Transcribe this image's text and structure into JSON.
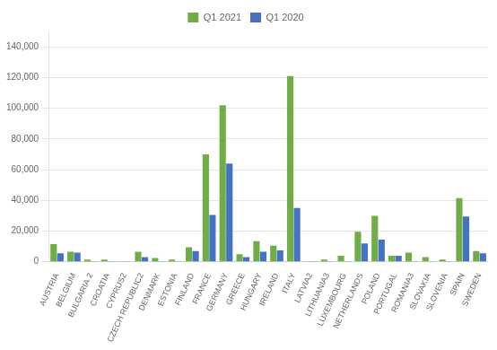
{
  "chart_data": {
    "type": "bar",
    "categories": [
      "AUSTRIA",
      "BELGIUM",
      "BULGARIA 2",
      "CROATIA",
      "CYPRUS2",
      "CZECH REPUBLIC2",
      "DENMARK",
      "ESTONIA",
      "FINLAND",
      "FRANCE",
      "GERMANY",
      "GREECE",
      "HUNGARY",
      "IRELAND",
      "ITALY",
      "LATVIA2",
      "LITHUANIA3",
      "LUXEMBOURG",
      "NETHERLANDS",
      "POLAND",
      "PORTUGAL",
      "ROMANIA3",
      "SLOVAKIA",
      "SLOVENIA",
      "SPAIN",
      "SWEDEN"
    ],
    "series": [
      {
        "name": "Q1 2021",
        "color": "#70ad47",
        "values": [
          11500,
          6500,
          1500,
          1500,
          500,
          6500,
          2500,
          1500,
          9500,
          70000,
          102000,
          5000,
          13500,
          10500,
          121000,
          500,
          1500,
          4000,
          19500,
          30000,
          4000,
          6000,
          3000,
          1500,
          41500,
          7000
        ]
      },
      {
        "name": "Q1 2020",
        "color": "#4472c4",
        "values": [
          5500,
          6000,
          500,
          500,
          500,
          3000,
          500,
          500,
          7000,
          30500,
          64000,
          3000,
          6500,
          7500,
          35000,
          500,
          500,
          500,
          12000,
          14500,
          4000,
          500,
          500,
          500,
          29500,
          5500
        ]
      }
    ],
    "ylim": [
      0,
      150000
    ],
    "yticks": [
      0,
      {
        "value": 20000,
        "label": "20,000"
      },
      {
        "value": 40000,
        "label": "40,000"
      },
      {
        "value": 60000,
        "label": "60,000"
      },
      {
        "value": 80000,
        "label": "80,000"
      },
      {
        "value": 100000,
        "label": "100,000"
      },
      {
        "value": 120000,
        "label": "120,000"
      },
      {
        "value": 140000,
        "label": "140,000"
      }
    ],
    "grid": true,
    "legend": "top"
  }
}
